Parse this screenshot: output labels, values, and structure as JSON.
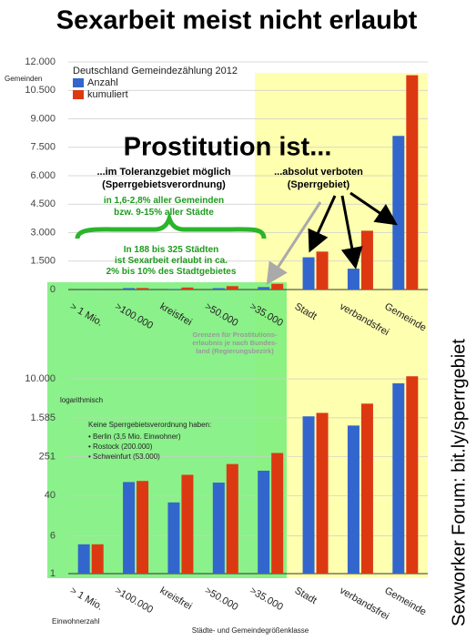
{
  "title": "Sexarbeit meist nicht erlaubt",
  "side_text": "Sexworker Forum: bit.ly/sperrgebiet",
  "annotations": {
    "heading": "Prostitution ist...",
    "tolerated": [
      "...im Toleranzgebiet möglich",
      "(Sperrgebietsverordnung)"
    ],
    "tolerated_share": [
      "in 1,6-2,8% aller Gemeinden",
      "bzw. 9-15% aller Städte"
    ],
    "brace_note": [
      "In 188 bis 325 Städten",
      "ist Sexarbeit erlaubt in ca.",
      "2% bis 10% des Stadtgebietes"
    ],
    "forbidden": [
      "...absolut verboten",
      "(Sperrgebiet)"
    ],
    "limits": [
      "Grenzen für Prostitutions-",
      "erlaubnis je nach Bundes-",
      "land (Regierungsbezirk)"
    ],
    "no_sgvo": {
      "heading": "Keine Sperrgebietsverordnung haben:",
      "items": [
        "• Berlin (3,5 Mio. Einwohner)",
        "• Rostock (200.000)",
        "• Schweinfurt (53.000)"
      ]
    }
  },
  "chart_data": [
    {
      "type": "bar",
      "ylabel": "Gemeinden",
      "legend_title": "Deutschland Gemeindezählung 2012",
      "legend": "upper left",
      "grid": true,
      "categories": [
        "> 1 Mio.",
        ">100.000",
        "kreisfrei",
        ">50.000",
        ">35.000",
        "Stadt",
        "verbandsfrei",
        "Gemeinde"
      ],
      "series": [
        {
          "name": "Anzahl",
          "color": "#3366cc",
          "values": [
            4,
            76,
            29,
            74,
            130,
            1700,
            1100,
            8100
          ]
        },
        {
          "name": "kumuliert",
          "color": "#dc3912",
          "values": [
            4,
            80,
            107,
            178,
            300,
            2000,
            3100,
            11300
          ]
        }
      ],
      "ylim": [
        0,
        12000
      ],
      "yticks": [
        0,
        {
          "value": 1500,
          "label": "1.500"
        },
        {
          "value": 3000,
          "label": "3.000"
        },
        {
          "value": 4500,
          "label": "4.500"
        },
        {
          "value": 6000,
          "label": "6.000"
        },
        {
          "value": 7500,
          "label": "7.500"
        },
        {
          "value": 9000,
          "label": "9.000"
        },
        {
          "value": 10500,
          "label": "10.500"
        },
        {
          "value": 12000,
          "label": "12.000"
        }
      ]
    },
    {
      "type": "bar",
      "log_scale": true,
      "ylabel": "logarithmisch",
      "xlabel": "Städte- und Gemeindegrößenklasse",
      "xlabel_left": "Einwohnerzahl",
      "grid": true,
      "categories": [
        "> 1 Mio.",
        ">100.000",
        "kreisfrei",
        ">50.000",
        ">35.000",
        "Stadt",
        "verbandsfrei",
        "Gemeinde"
      ],
      "series": [
        {
          "color": "#3366cc",
          "values": [
            4,
            76,
            29,
            74,
            130,
            1700,
            1100,
            8100
          ]
        },
        {
          "color": "#dc3912",
          "values": [
            4,
            80,
            107,
            178,
            300,
            2000,
            3100,
            11300
          ]
        }
      ],
      "ylim": [
        1,
        20000
      ],
      "yticks": [
        1,
        6,
        40,
        251,
        {
          "value": 1585,
          "label": "1.585"
        },
        {
          "value": 10000,
          "label": "10.000"
        }
      ]
    }
  ]
}
